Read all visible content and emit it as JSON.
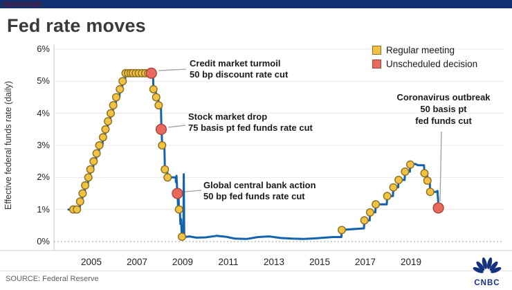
{
  "title": "Fed rate moves",
  "topbar": {
    "color": "#0e2f74"
  },
  "legend": {
    "items": [
      {
        "label": "Regular meeting",
        "color": "#F2C245",
        "border": "#8a6d1f"
      },
      {
        "label": "Unscheduled decision",
        "color": "#E8695E",
        "border": "#aa423a"
      }
    ]
  },
  "y_axis": {
    "title": "Effective federal funds rate (daily)",
    "ticks": [
      "6%",
      "5%",
      "4%",
      "3%",
      "2%",
      "1%",
      "0%"
    ]
  },
  "x_axis": {
    "ticks": [
      "2005",
      "2007",
      "2009",
      "2011",
      "2013",
      "2015",
      "2017",
      "2019"
    ]
  },
  "annotations": [
    {
      "lines": [
        "Credit market turmoil",
        "50 bp discount rate cut"
      ]
    },
    {
      "lines": [
        "Stock market drop",
        "75 basis pt fed funds rate cut"
      ]
    },
    {
      "lines": [
        "Global central bank action",
        "50 bp fed funds rate cut"
      ]
    },
    {
      "lines": [
        "Coronavirus outbreak",
        "50 basis pt",
        "fed funds cut"
      ]
    }
  ],
  "source": "SOURCE: Federal Reserve",
  "logo_text": "CNBC",
  "colors": {
    "line": "#1362AC",
    "regular_dot": "#F2C245",
    "regular_dot_border": "#8a6d1f",
    "unscheduled_dot": "#E8695E",
    "unscheduled_dot_border": "#aa423a",
    "topbar": "#0e2f74",
    "gridline": "#e9e9e9",
    "zero_line": "#9b9b9b",
    "leader": "#9e9e9e"
  },
  "chart_data": {
    "type": "line",
    "title": "Fed rate moves",
    "xlabel": "",
    "ylabel": "Effective federal funds rate (daily)",
    "xlim": [
      2003.6,
      2021.1
    ],
    "ylim": [
      0,
      6
    ],
    "x_ticks": [
      2005,
      2007,
      2009,
      2011,
      2013,
      2015,
      2017,
      2019
    ],
    "y_ticks_pct": [
      0,
      1,
      2,
      3,
      4,
      5,
      6
    ],
    "grid": "horizontal",
    "legend_position": "top-right",
    "series": [
      {
        "name": "Effective federal funds rate",
        "points": [
          [
            2004.0,
            1.0
          ],
          [
            2004.49,
            1.0
          ],
          [
            2004.51,
            1.25
          ],
          [
            2004.6,
            1.25
          ],
          [
            2004.62,
            1.5
          ],
          [
            2004.71,
            1.5
          ],
          [
            2004.73,
            1.75
          ],
          [
            2004.85,
            1.75
          ],
          [
            2004.87,
            2.0
          ],
          [
            2004.94,
            2.0
          ],
          [
            2004.96,
            2.25
          ],
          [
            2005.08,
            2.25
          ],
          [
            2005.1,
            2.5
          ],
          [
            2005.21,
            2.5
          ],
          [
            2005.23,
            2.75
          ],
          [
            2005.33,
            2.75
          ],
          [
            2005.35,
            3.0
          ],
          [
            2005.49,
            3.0
          ],
          [
            2005.51,
            3.25
          ],
          [
            2005.6,
            3.25
          ],
          [
            2005.62,
            3.5
          ],
          [
            2005.71,
            3.5
          ],
          [
            2005.73,
            3.75
          ],
          [
            2005.83,
            3.75
          ],
          [
            2005.85,
            4.0
          ],
          [
            2005.94,
            4.0
          ],
          [
            2005.96,
            4.25
          ],
          [
            2006.07,
            4.25
          ],
          [
            2006.09,
            4.5
          ],
          [
            2006.23,
            4.5
          ],
          [
            2006.25,
            4.75
          ],
          [
            2006.35,
            4.75
          ],
          [
            2006.37,
            5.0
          ],
          [
            2006.48,
            5.0
          ],
          [
            2006.5,
            5.25
          ],
          [
            2007.7,
            5.25
          ],
          [
            2007.72,
            4.75
          ],
          [
            2007.82,
            4.75
          ],
          [
            2007.84,
            4.5
          ],
          [
            2007.93,
            4.5
          ],
          [
            2007.95,
            4.25
          ],
          [
            2008.05,
            4.25
          ],
          [
            2008.07,
            3.5
          ],
          [
            2008.08,
            3.5
          ],
          [
            2008.1,
            3.0
          ],
          [
            2008.2,
            3.0
          ],
          [
            2008.22,
            2.25
          ],
          [
            2008.32,
            2.25
          ],
          [
            2008.34,
            2.0
          ],
          [
            2008.69,
            2.0
          ],
          [
            2008.71,
            1.85
          ],
          [
            2008.73,
            2.05
          ],
          [
            2008.76,
            1.6
          ],
          [
            2008.78,
            1.45
          ],
          [
            2008.8,
            1.05
          ],
          [
            2008.82,
            1.4
          ],
          [
            2008.84,
            1.0
          ],
          [
            2008.88,
            0.95
          ],
          [
            2008.9,
            0.55
          ],
          [
            2008.93,
            0.7
          ],
          [
            2008.95,
            0.35
          ],
          [
            2008.97,
            0.15
          ],
          [
            2009.03,
            0.15
          ],
          [
            2009.05,
            2.1
          ],
          [
            2009.07,
            0.14
          ],
          [
            2009.3,
            0.16
          ],
          [
            2009.6,
            0.12
          ],
          [
            2010.0,
            0.13
          ],
          [
            2010.5,
            0.18
          ],
          [
            2010.9,
            0.15
          ],
          [
            2011.3,
            0.09
          ],
          [
            2011.8,
            0.08
          ],
          [
            2012.3,
            0.14
          ],
          [
            2012.8,
            0.16
          ],
          [
            2013.3,
            0.11
          ],
          [
            2013.8,
            0.09
          ],
          [
            2014.3,
            0.08
          ],
          [
            2014.8,
            0.1
          ],
          [
            2015.2,
            0.12
          ],
          [
            2015.6,
            0.14
          ],
          [
            2015.95,
            0.14
          ],
          [
            2015.97,
            0.36
          ],
          [
            2016.3,
            0.38
          ],
          [
            2016.7,
            0.4
          ],
          [
            2016.94,
            0.41
          ],
          [
            2016.96,
            0.66
          ],
          [
            2017.19,
            0.66
          ],
          [
            2017.21,
            0.91
          ],
          [
            2017.44,
            0.91
          ],
          [
            2017.46,
            1.16
          ],
          [
            2017.7,
            1.16
          ],
          [
            2017.94,
            1.16
          ],
          [
            2017.96,
            1.42
          ],
          [
            2018.21,
            1.42
          ],
          [
            2018.23,
            1.69
          ],
          [
            2018.44,
            1.69
          ],
          [
            2018.46,
            1.92
          ],
          [
            2018.72,
            1.92
          ],
          [
            2018.74,
            2.18
          ],
          [
            2018.95,
            2.18
          ],
          [
            2018.97,
            2.4
          ],
          [
            2019.2,
            2.42
          ],
          [
            2019.3,
            2.38
          ],
          [
            2019.57,
            2.38
          ],
          [
            2019.59,
            2.13
          ],
          [
            2019.7,
            2.13
          ],
          [
            2019.72,
            1.9
          ],
          [
            2019.82,
            1.9
          ],
          [
            2019.84,
            1.55
          ],
          [
            2020.12,
            1.55
          ],
          [
            2020.16,
            1.58
          ],
          [
            2020.19,
            1.25
          ]
        ]
      }
    ],
    "regular_meetings": [
      [
        2004.21,
        1.0
      ],
      [
        2004.37,
        1.0
      ],
      [
        2004.51,
        1.25
      ],
      [
        2004.62,
        1.5
      ],
      [
        2004.73,
        1.75
      ],
      [
        2004.87,
        2.0
      ],
      [
        2004.96,
        2.25
      ],
      [
        2005.1,
        2.5
      ],
      [
        2005.23,
        2.75
      ],
      [
        2005.35,
        3.0
      ],
      [
        2005.51,
        3.25
      ],
      [
        2005.62,
        3.5
      ],
      [
        2005.73,
        3.75
      ],
      [
        2005.85,
        4.0
      ],
      [
        2005.96,
        4.25
      ],
      [
        2006.09,
        4.5
      ],
      [
        2006.25,
        4.75
      ],
      [
        2006.37,
        5.0
      ],
      [
        2006.5,
        5.25
      ],
      [
        2006.61,
        5.25
      ],
      [
        2006.72,
        5.25
      ],
      [
        2006.82,
        5.25
      ],
      [
        2006.95,
        5.25
      ],
      [
        2007.08,
        5.25
      ],
      [
        2007.22,
        5.25
      ],
      [
        2007.36,
        5.25
      ],
      [
        2007.49,
        5.25
      ],
      [
        2007.6,
        5.25
      ],
      [
        2007.72,
        4.75
      ],
      [
        2007.84,
        4.5
      ],
      [
        2007.95,
        4.25
      ],
      [
        2008.1,
        3.0
      ],
      [
        2008.22,
        2.25
      ],
      [
        2008.34,
        2.0
      ],
      [
        2008.84,
        1.0
      ],
      [
        2008.97,
        0.15
      ],
      [
        2015.97,
        0.36
      ],
      [
        2016.96,
        0.66
      ],
      [
        2017.21,
        0.91
      ],
      [
        2017.46,
        1.16
      ],
      [
        2017.96,
        1.42
      ],
      [
        2018.23,
        1.69
      ],
      [
        2018.46,
        1.92
      ],
      [
        2018.74,
        2.18
      ],
      [
        2018.97,
        2.4
      ],
      [
        2019.59,
        2.13
      ],
      [
        2019.72,
        1.9
      ],
      [
        2019.84,
        1.55
      ]
    ],
    "unscheduled_decisions": [
      [
        2007.63,
        5.25
      ],
      [
        2008.06,
        3.5
      ],
      [
        2008.77,
        1.5
      ],
      [
        2020.2,
        1.05
      ]
    ],
    "annotations": [
      {
        "text": "Credit market turmoil — 50 bp discount rate cut",
        "at": [
          2007.63,
          5.25
        ]
      },
      {
        "text": "Stock market drop — 75 basis pt fed funds rate cut",
        "at": [
          2008.06,
          3.5
        ]
      },
      {
        "text": "Global central bank action — 50 bp fed funds rate cut",
        "at": [
          2008.77,
          1.5
        ]
      },
      {
        "text": "Coronavirus outbreak — 50 basis pt fed funds cut",
        "at": [
          2020.2,
          1.05
        ]
      }
    ]
  }
}
